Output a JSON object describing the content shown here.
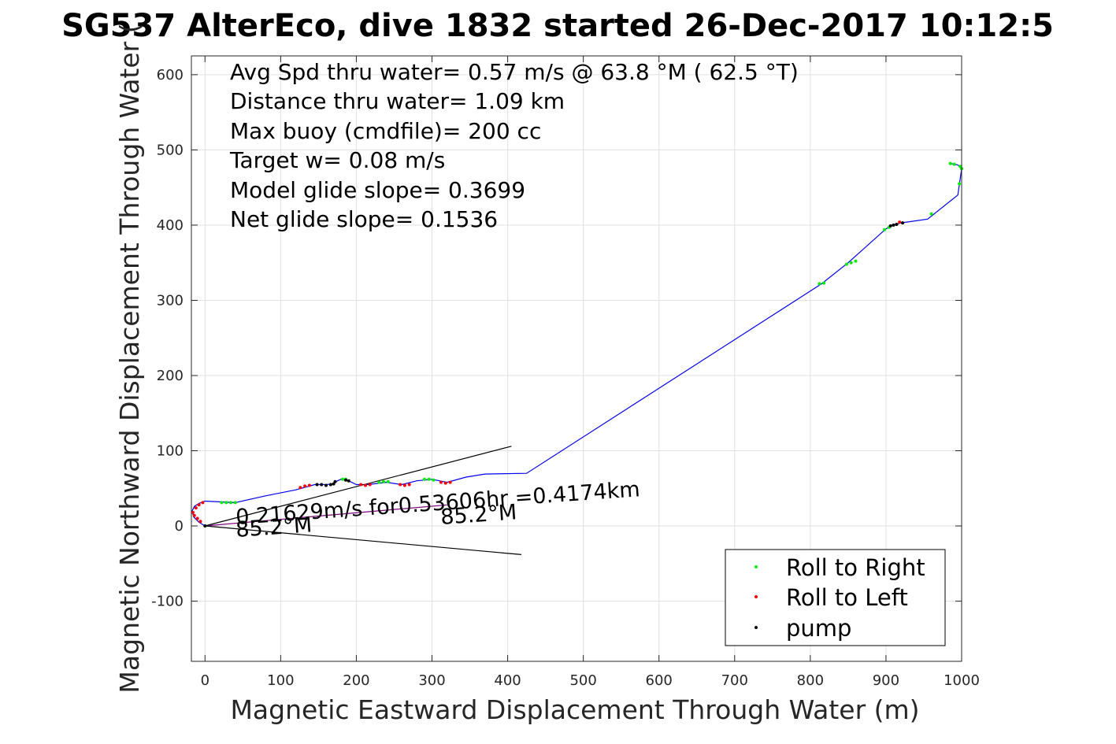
{
  "chart_data": {
    "type": "scatter",
    "title": "SG537 AlterEco, dive 1832 started 26-Dec-2017 10:12:5",
    "xlabel": "Magnetic Eastward Displacement Through Water (m)",
    "ylabel": "Magnetic Northward Displacement Through Water (",
    "xlim": [
      -18,
      1000
    ],
    "ylim": [
      -180,
      625
    ],
    "x_ticks": [
      0,
      100,
      200,
      300,
      400,
      500,
      600,
      700,
      800,
      900,
      1000
    ],
    "y_ticks": [
      -100,
      0,
      100,
      200,
      300,
      400,
      500,
      600
    ],
    "grid": true,
    "annotations": [
      "Avg Spd thru water=  0.57 m/s @  63.8 °M ( 62.5 °T)",
      "Distance thru water=  1.09 km",
      "Max buoy (cmdfile)= 200 cc",
      "Target w= 0.08 m/s",
      "Model glide slope= 0.3699",
      "Net glide slope= 0.1536"
    ],
    "track_labels": {
      "speed": "0.21629m/s for0.53606hr =0.4174km",
      "heading_start": "85.2°M",
      "heading_end": "85.2°M"
    },
    "legend": {
      "position": "bottom-right",
      "entries": [
        {
          "label": "Roll to Right",
          "color": "#00ee00"
        },
        {
          "label": "Roll to Left",
          "color": "#ff0000"
        },
        {
          "label": "pump",
          "color": "#000000"
        }
      ]
    },
    "series": [
      {
        "color": "#0000ee",
        "x": [
          0,
          -8,
          -15,
          -17,
          -14,
          -8,
          0,
          40,
          80,
          120,
          145,
          160,
          170,
          175,
          180,
          190,
          200,
          215,
          240,
          260,
          280,
          300,
          320,
          345,
          370,
          425,
          815,
          850,
          900,
          910,
          920,
          955,
          995,
          1000,
          995,
          985
        ],
        "y": [
          0,
          5,
          12,
          20,
          26,
          30,
          33,
          31,
          40,
          48,
          55,
          55,
          56,
          60,
          62,
          60,
          55,
          55,
          58,
          55,
          60,
          62,
          58,
          65,
          69,
          70,
          322,
          350,
          395,
          400,
          403,
          408,
          440,
          475,
          480,
          482
        ]
      },
      {
        "color": "#800080",
        "x": [
          0,
          320
        ],
        "y": [
          0,
          28
        ]
      },
      {
        "color": "#000000",
        "x": [
          0,
          405
        ],
        "y": [
          0,
          106
        ]
      },
      {
        "color": "#000000",
        "x": [
          0,
          418
        ],
        "y": [
          0,
          -38
        ]
      }
    ],
    "points": {
      "roll_right": {
        "x": [
          22,
          28,
          34,
          40,
          182,
          186,
          230,
          236,
          242,
          290,
          296,
          302,
          812,
          818,
          848,
          854,
          860,
          898,
          904,
          960,
          985,
          990,
          998,
          1000,
          997
        ],
        "y": [
          31,
          31,
          31,
          31,
          62,
          62,
          58,
          59,
          59,
          62,
          62,
          61,
          322,
          323,
          348,
          350,
          352,
          394,
          397,
          415,
          482,
          481,
          478,
          475,
          455
        ]
      },
      "roll_left": {
        "x": [
          -16,
          -14,
          -12,
          -10,
          -8,
          -6,
          -3,
          126,
          132,
          138,
          206,
          212,
          218,
          258,
          264,
          270,
          312,
          318,
          324,
          918
        ],
        "y": [
          18,
          14,
          24,
          10,
          28,
          6,
          31,
          51,
          53,
          54,
          55,
          54,
          55,
          55,
          54,
          55,
          58,
          57,
          58,
          404
        ]
      },
      "pump": {
        "x": [
          148,
          154,
          160,
          166,
          170,
          172,
          186,
          190,
          906,
          910,
          914,
          922,
          0
        ],
        "y": [
          55,
          55,
          54,
          55,
          56,
          59,
          61,
          60,
          399,
          400,
          401,
          403,
          0
        ]
      }
    }
  }
}
